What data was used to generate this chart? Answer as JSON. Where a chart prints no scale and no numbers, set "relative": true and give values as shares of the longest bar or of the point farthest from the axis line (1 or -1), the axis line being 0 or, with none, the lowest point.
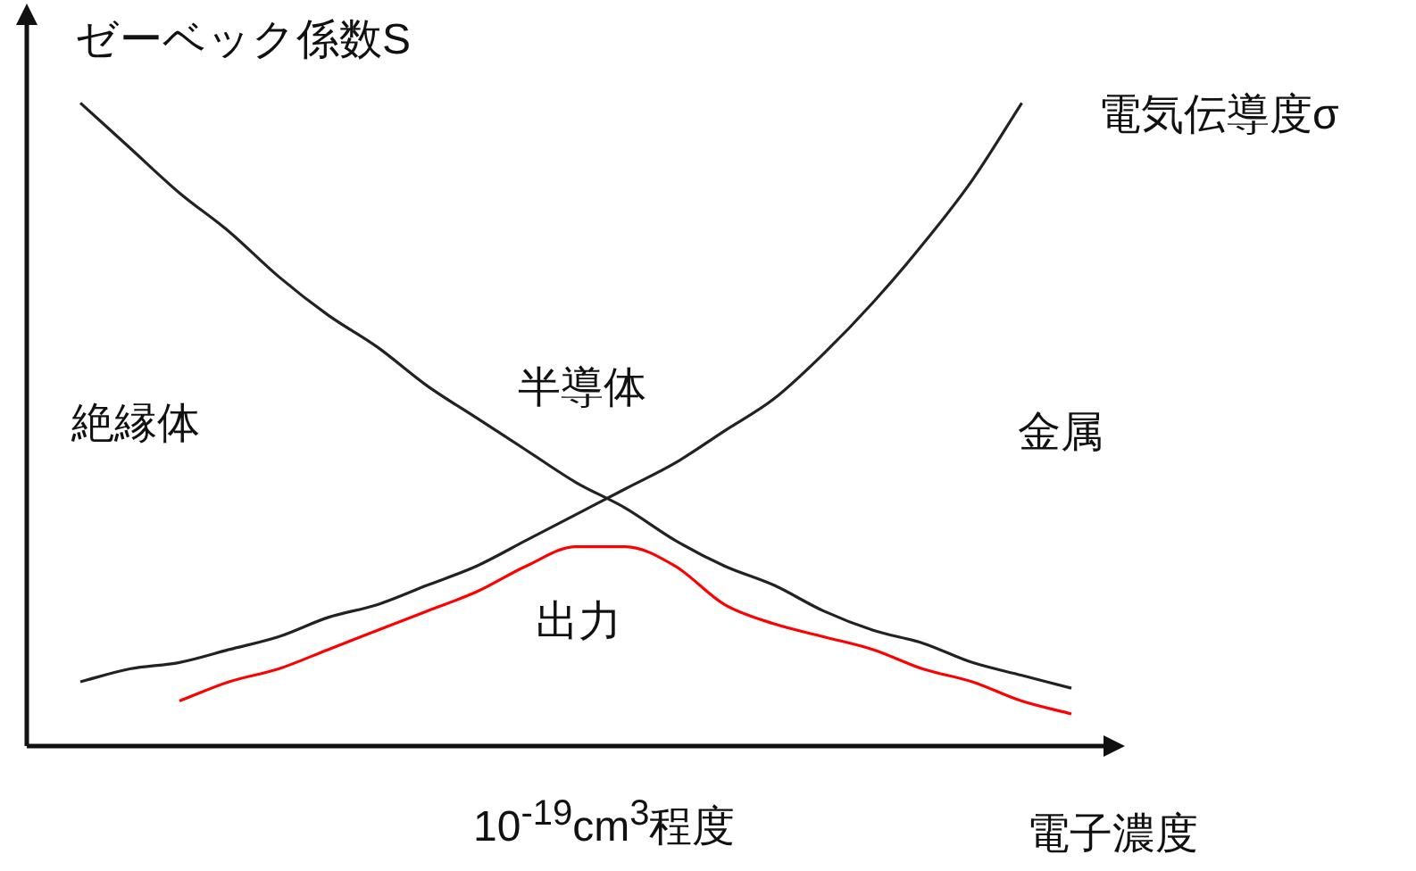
{
  "chart_data": {
    "type": "line",
    "relative": true,
    "ylabel": "ゼーベック係数S",
    "xlabel": "電子濃度",
    "legend": false,
    "marker": "none",
    "categories": [
      null,
      null,
      null,
      null,
      null,
      null,
      null,
      null,
      null,
      null,
      null,
      null,
      null,
      null,
      null,
      null,
      null,
      null,
      null,
      null,
      null
    ],
    "series": [
      {
        "color": "#222222",
        "values": [
          1.0,
          0.93,
          0.86,
          0.8,
          0.73,
          0.67,
          0.62,
          0.56,
          0.51,
          0.46,
          0.41,
          0.37,
          0.32,
          0.28,
          0.25,
          0.21,
          0.18,
          0.16,
          0.13,
          0.11,
          0.09
        ]
      },
      {
        "name": "電気伝導度σ",
        "color": "#222222",
        "values": [
          0.1,
          0.12,
          0.13,
          0.15,
          0.17,
          0.2,
          0.22,
          0.25,
          0.28,
          0.32,
          0.36,
          0.4,
          0.44,
          0.49,
          0.54,
          0.61,
          0.69,
          0.78,
          0.88,
          1.0,
          null
        ]
      },
      {
        "name": "出力",
        "color": "#ff0000",
        "values": [
          null,
          null,
          0.07,
          0.1,
          0.12,
          0.15,
          0.18,
          0.21,
          0.24,
          0.28,
          0.31,
          0.31,
          0.28,
          0.22,
          0.19,
          0.17,
          0.15,
          0.12,
          0.1,
          0.07,
          0.05
        ]
      }
    ],
    "annotations": [
      "絶縁体",
      "半導体",
      "金属",
      "10$^{-19}$cm$^{3}$程度"
    ]
  }
}
